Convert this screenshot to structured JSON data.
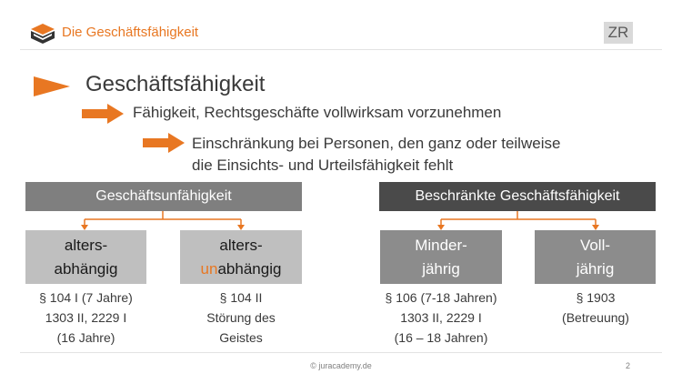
{
  "header": {
    "title": "Die Geschäftsfähigkeit",
    "badge": "ZR"
  },
  "heading": "Geschäftsfähigkeit",
  "sub1": "Fähigkeit, Rechtsgeschäfte vollwirksam vorzunehmen",
  "sub2": {
    "line1": "Einschränkung bei Personen, den ganz oder teilweise",
    "line2": "die Einsichts- und Urteilsfähigkeit fehlt"
  },
  "left": {
    "title": "Geschäftsunfähigkeit",
    "children": [
      {
        "line1": "alters-",
        "line2": "abhängig",
        "caption": [
          "§ 104 I (7 Jahre)",
          "1303 II, 2229 I",
          "(16 Jahre)"
        ]
      },
      {
        "line1": "alters-",
        "line2_prefix": "un",
        "line2_rest": "abhängig",
        "caption": [
          "§ 104 II",
          "Störung des",
          "Geistes"
        ]
      }
    ]
  },
  "right": {
    "title": "Beschränkte Geschäftsfähigkeit",
    "children": [
      {
        "line1": "Minder-",
        "line2": "jährig",
        "caption": [
          "§ 106 (7-18 Jahren)",
          "1303 II, 2229 I",
          "(16 – 18 Jahren)"
        ]
      },
      {
        "line1": "Voll-",
        "line2": "jährig",
        "caption": [
          "§ 1903",
          "(Betreuung)"
        ]
      }
    ]
  },
  "footer": {
    "copyright": "© juracademy.de",
    "page": "2"
  },
  "colors": {
    "accent": "#e87722",
    "gray": "#7f7f7f",
    "dark": "#4a4a4a",
    "light": "#bfbfbf"
  },
  "icons": {
    "logo": "book-icon",
    "bullet": "triangle-icon",
    "arrow": "arrow-right-icon"
  }
}
